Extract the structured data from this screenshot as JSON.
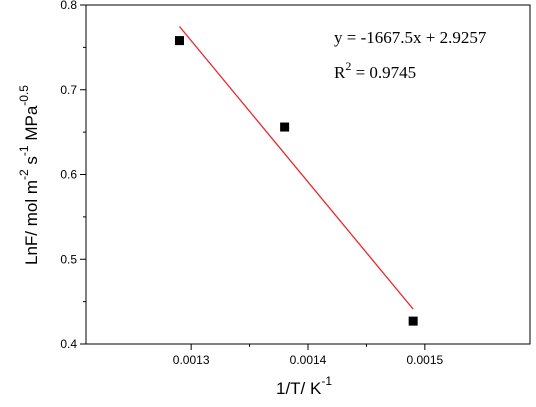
{
  "chart_data": {
    "type": "scatter",
    "title": "",
    "xlabel": {
      "base": "1/T/ K",
      "sup": "-1"
    },
    "ylabel": {
      "parts": [
        {
          "text": "LnF/ mol m",
          "sup": false
        },
        {
          "text": "-2",
          "sup": true
        },
        {
          "text": " s",
          "sup": false
        },
        {
          "text": "-1",
          "sup": true
        },
        {
          "text": " MPa",
          "sup": false
        },
        {
          "text": "-0.5",
          "sup": true
        }
      ]
    },
    "xlim": [
      0.00121,
      0.00159
    ],
    "ylim": [
      0.4,
      0.8
    ],
    "x_ticks": [
      0.0013,
      0.0014,
      0.0015
    ],
    "x_tick_labels": [
      "0.0013",
      "0.0014",
      "0.0015"
    ],
    "y_ticks": [
      0.4,
      0.5,
      0.6,
      0.7,
      0.8
    ],
    "y_tick_labels": [
      "0.4",
      "0.5",
      "0.6",
      "0.7",
      "0.8"
    ],
    "points": [
      {
        "x": 0.00129,
        "y": 0.758
      },
      {
        "x": 0.00138,
        "y": 0.656
      },
      {
        "x": 0.00149,
        "y": 0.427
      }
    ],
    "fit_line": {
      "slope": -1667.5,
      "intercept": 2.9257,
      "x_range": [
        0.00129,
        0.00149
      ],
      "color": "#e8262b"
    },
    "marker_color": "#000000",
    "equation": "y = -1667.5x + 2.9257",
    "r2": {
      "base": "R",
      "sup": "2",
      "rest": " = 0.9745"
    },
    "grid": false,
    "legend": "none"
  }
}
